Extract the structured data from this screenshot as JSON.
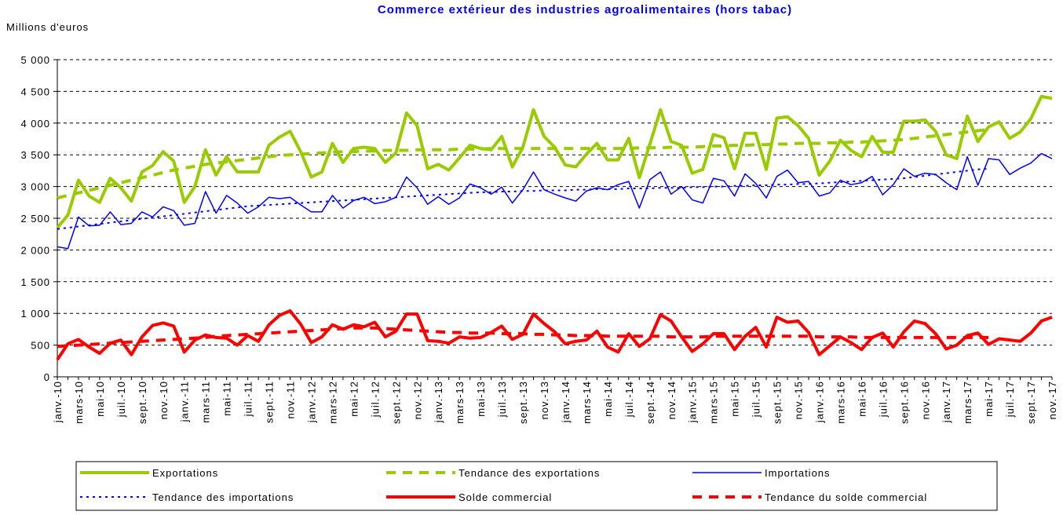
{
  "chart_data": {
    "type": "line",
    "title": "Commerce extérieur des industries agroalimentaires (hors tabac)",
    "y_label": "Millions d'euros",
    "categories": [
      "janv.-10",
      null,
      "mars-10",
      null,
      "mai-10",
      null,
      "juil.-10",
      null,
      "sept.-10",
      null,
      "nov.-10",
      null,
      "janv.-11",
      null,
      "mars-11",
      null,
      "mai-11",
      null,
      "juil.-11",
      null,
      "sept.-11",
      null,
      "nov.-11",
      null,
      "janv.-12",
      null,
      "mars-12",
      null,
      "mai-12",
      null,
      "juil.-12",
      null,
      "sept.-12",
      null,
      "nov.-12",
      null,
      "janv.-13",
      null,
      "mars-13",
      null,
      "mai-13",
      null,
      "juil.-13",
      null,
      "sept.-13",
      null,
      "nov.-13",
      null,
      "janv.-14",
      null,
      "mars-14",
      null,
      "mai-14",
      null,
      "juil.-14",
      null,
      "sept.-14",
      null,
      "nov.-14",
      null,
      "janv.-15",
      null,
      "mars-15",
      null,
      "mai-15",
      null,
      "juil.-15",
      null,
      "sept.-15",
      null,
      "nov.-15",
      null,
      "janv.-16",
      null,
      "mars-16",
      null,
      "mai-16",
      null,
      "juil.-16",
      null,
      "sept.-16",
      null,
      "nov.-16",
      null,
      "janv.-17",
      null,
      "mars-17",
      null,
      "mai-17",
      null,
      "juil.-17",
      null,
      "sept.-17",
      null,
      "nov.-17"
    ],
    "ylim": [
      0,
      5000
    ],
    "yticks": [
      0,
      500,
      {
        "value": 1000,
        "label": "1 000"
      },
      {
        "value": 1500,
        "label": "1 500"
      },
      {
        "value": 2000,
        "label": "2 000"
      },
      {
        "value": 2500,
        "label": "2 500"
      },
      {
        "value": 3000,
        "label": "3 000"
      },
      {
        "value": 3500,
        "label": "3 500"
      },
      {
        "value": 4000,
        "label": "4 000"
      },
      {
        "value": 4500,
        "label": "4 500"
      },
      {
        "value": 5000,
        "label": "5 000"
      }
    ],
    "grid": true,
    "legend": "bottom",
    "series": [
      {
        "name": "Exportations",
        "color": "#99cc00",
        "style": "thick",
        "values": [
          2350,
          2550,
          3100,
          2850,
          2750,
          3130,
          2980,
          2770,
          3230,
          3330,
          3550,
          3400,
          2750,
          3000,
          3580,
          3180,
          3470,
          3230,
          3230,
          3230,
          3650,
          3780,
          3870,
          3550,
          3150,
          3230,
          3680,
          3380,
          3600,
          3620,
          3600,
          3380,
          3530,
          4160,
          3960,
          3280,
          3350,
          3260,
          3450,
          3650,
          3600,
          3580,
          3790,
          3310,
          3620,
          4210,
          3790,
          3620,
          3340,
          3310,
          3510,
          3680,
          3420,
          3420,
          3760,
          3140,
          3670,
          4210,
          3710,
          3650,
          3210,
          3270,
          3820,
          3770,
          3280,
          3840,
          3840,
          3270,
          4080,
          4100,
          3960,
          3760,
          3180,
          3400,
          3730,
          3570,
          3470,
          3790,
          3540,
          3540,
          4030,
          4030,
          4050,
          3870,
          3500,
          3440,
          4110,
          3710,
          3940,
          4020,
          3760,
          3860,
          4070,
          4420,
          4390
        ]
      },
      {
        "name": "Tendance des exportations",
        "color": "#99cc00",
        "style": "dashed",
        "values": [
          2820,
          2860,
          2900,
          2940,
          2980,
          3020,
          3060,
          3100,
          3140,
          3180,
          3220,
          3260,
          3290,
          3320,
          3350,
          3370,
          3390,
          3410,
          3430,
          3450,
          3470,
          3490,
          3500,
          3510,
          3520,
          3530,
          3540,
          3550,
          3550,
          3560,
          3560,
          3570,
          3570,
          3570,
          3580,
          3580,
          3580,
          3580,
          3590,
          3590,
          3590,
          3600,
          3600,
          3600,
          3600,
          3600,
          3600,
          3600,
          3600,
          3600,
          3600,
          3600,
          3600,
          3600,
          3600,
          3610,
          3610,
          3610,
          3620,
          3620,
          3620,
          3630,
          3640,
          3640,
          3650,
          3650,
          3660,
          3660,
          3670,
          3670,
          3680,
          3680,
          3680,
          3690,
          3690,
          3700,
          3700,
          3710,
          3720,
          3730,
          3740,
          3760,
          3780,
          3800,
          3820,
          3840,
          3860,
          3880,
          3900,
          null,
          null,
          null,
          null,
          null,
          null
        ]
      },
      {
        "name": "Importations",
        "color": "#0000ff",
        "style": "thin",
        "values": [
          2050,
          2020,
          2520,
          2380,
          2390,
          2600,
          2400,
          2420,
          2600,
          2520,
          2680,
          2620,
          2390,
          2420,
          2920,
          2580,
          2860,
          2740,
          2580,
          2680,
          2830,
          2810,
          2830,
          2710,
          2600,
          2600,
          2860,
          2660,
          2780,
          2830,
          2730,
          2760,
          2830,
          3150,
          2980,
          2720,
          2840,
          2720,
          2820,
          3040,
          2980,
          2880,
          2990,
          2740,
          2950,
          3230,
          2950,
          2880,
          2820,
          2770,
          2930,
          2980,
          2950,
          3030,
          3080,
          2660,
          3110,
          3230,
          2880,
          3000,
          2790,
          2740,
          3130,
          3090,
          2850,
          3200,
          3050,
          2820,
          3160,
          3260,
          3060,
          3080,
          2850,
          2900,
          3100,
          3030,
          3060,
          3160,
          2870,
          3030,
          3280,
          3160,
          3210,
          3190,
          3060,
          2950,
          3470,
          3020,
          3440,
          3420,
          3190,
          3290,
          3370,
          3520,
          3440
        ]
      },
      {
        "name": "Tendance des importations",
        "color": "#0000ff",
        "style": "dotted",
        "values": [
          2330,
          2350,
          2370,
          2390,
          2410,
          2430,
          2450,
          2470,
          2490,
          2510,
          2530,
          2550,
          2570,
          2590,
          2610,
          2630,
          2650,
          2670,
          2690,
          2700,
          2710,
          2720,
          2730,
          2740,
          2750,
          2760,
          2770,
          2780,
          2790,
          2800,
          2810,
          2820,
          2830,
          2840,
          2850,
          2860,
          2870,
          2880,
          2890,
          2900,
          2910,
          2910,
          2920,
          2920,
          2930,
          2930,
          2940,
          2940,
          2940,
          2950,
          2950,
          2960,
          2960,
          2960,
          2970,
          2970,
          2970,
          2980,
          2980,
          2980,
          2990,
          2990,
          3000,
          3000,
          3010,
          3010,
          3020,
          3020,
          3030,
          3030,
          3040,
          3040,
          3050,
          3060,
          3070,
          3080,
          3090,
          3100,
          3110,
          3120,
          3130,
          3150,
          3170,
          3190,
          3210,
          3230,
          3250,
          3270,
          3280,
          null,
          null,
          null,
          null,
          null,
          null
        ]
      },
      {
        "name": "Solde commercial",
        "color": "#ff0000",
        "style": "thick",
        "values": [
          270,
          520,
          590,
          470,
          370,
          530,
          580,
          350,
          630,
          810,
          850,
          800,
          390,
          580,
          660,
          620,
          610,
          500,
          650,
          560,
          820,
          970,
          1040,
          830,
          540,
          630,
          820,
          750,
          820,
          790,
          860,
          630,
          720,
          990,
          990,
          570,
          560,
          530,
          630,
          610,
          620,
          700,
          800,
          590,
          670,
          990,
          840,
          710,
          520,
          560,
          580,
          720,
          470,
          390,
          680,
          480,
          600,
          980,
          880,
          630,
          400,
          520,
          680,
          680,
          430,
          640,
          780,
          470,
          940,
          860,
          880,
          700,
          350,
          490,
          630,
          540,
          430,
          620,
          690,
          470,
          710,
          880,
          840,
          680,
          440,
          500,
          650,
          690,
          510,
          600,
          580,
          560,
          690,
          880,
          940
        ]
      },
      {
        "name": "Tendance du solde commercial",
        "color": "#ff0000",
        "style": "dashed",
        "values": [
          480,
          490,
          500,
          510,
          520,
          530,
          540,
          550,
          560,
          570,
          580,
          590,
          600,
          610,
          620,
          640,
          650,
          660,
          670,
          680,
          690,
          700,
          710,
          720,
          730,
          740,
          750,
          760,
          770,
          770,
          770,
          760,
          750,
          740,
          730,
          720,
          710,
          700,
          700,
          690,
          690,
          690,
          680,
          680,
          680,
          670,
          670,
          660,
          660,
          650,
          650,
          650,
          640,
          640,
          640,
          640,
          640,
          640,
          630,
          630,
          630,
          630,
          640,
          640,
          640,
          640,
          640,
          640,
          640,
          640,
          640,
          640,
          630,
          630,
          630,
          630,
          620,
          620,
          620,
          620,
          620,
          620,
          620,
          620,
          620,
          620,
          620,
          620,
          620,
          null,
          null,
          null,
          null,
          null,
          null
        ]
      }
    ]
  }
}
